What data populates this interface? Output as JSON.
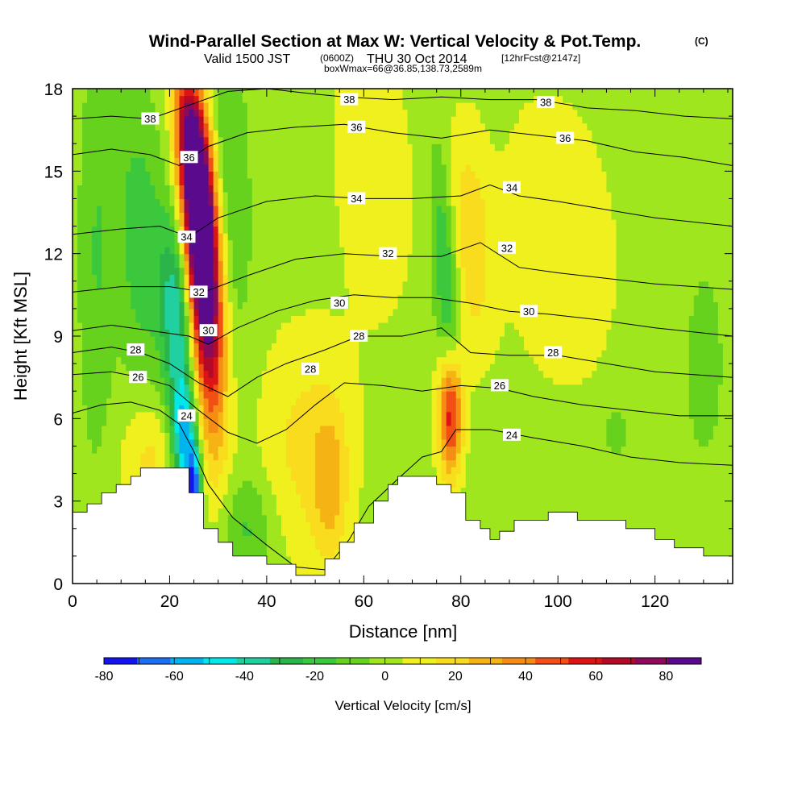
{
  "header": {
    "title": "Wind-Parallel Section at Max W: Vertical Velocity & Pot.Temp.",
    "copyright": "(C)",
    "valid_a": "Valid 1500 JST",
    "valid_b": "(0600Z)",
    "valid_c": "THU 30 Oct 2014",
    "valid_d": "[12hrFcst@2147z]",
    "box_line": "boxWmax=66@36.85,138.73,2589m"
  },
  "chart_data": {
    "type": "heatmap",
    "xlabel": "Distance [nm]",
    "ylabel": "Height [Kft MSL]",
    "xlim": [
      0,
      136
    ],
    "ylim": [
      0,
      18
    ],
    "x_ticks": [
      0,
      20,
      40,
      60,
      80,
      100,
      120
    ],
    "y_ticks": [
      0,
      3,
      6,
      9,
      12,
      15,
      18
    ],
    "colorbar": {
      "title": "Vertical Velocity [cm/s]",
      "ticks": [
        -80,
        -60,
        -40,
        -20,
        0,
        20,
        40,
        60,
        80
      ],
      "levels": [
        -80,
        -70,
        -60,
        -50,
        -40,
        -30,
        -20,
        -10,
        0,
        10,
        20,
        30,
        40,
        50,
        60,
        70,
        80,
        90
      ],
      "colors": [
        "#1414f0",
        "#1e6ef5",
        "#00b4f0",
        "#00e8e8",
        "#20d0a0",
        "#2ab44a",
        "#3cc83c",
        "#66d21e",
        "#a0e61e",
        "#f0f01e",
        "#fadc1e",
        "#f5b414",
        "#f58c14",
        "#f05014",
        "#dc1414",
        "#b40a28",
        "#8c0a5a",
        "#5a0a8c"
      ]
    },
    "background_value": 5,
    "velocity_features": [
      {
        "x": 26,
        "y": 13.6,
        "sx": 2.2,
        "sy": 2.8,
        "value": 95,
        "tilt": -0.3
      },
      {
        "x": 27.5,
        "y": 10.5,
        "sx": 2.5,
        "sy": 4.0,
        "value": 75,
        "tilt": -0.28
      },
      {
        "x": 23.5,
        "y": 16.5,
        "sx": 2.0,
        "sy": 1.8,
        "value": 40,
        "tilt": -0.3
      },
      {
        "x": 78,
        "y": 6.2,
        "sx": 1.8,
        "sy": 1.6,
        "value": 65,
        "tilt": 0
      },
      {
        "x": 82,
        "y": 12.5,
        "sx": 3.0,
        "sy": 2.8,
        "value": 22,
        "tilt": -0.3
      },
      {
        "x": 21.5,
        "y": 9.5,
        "sx": 2.3,
        "sy": 2.5,
        "value": -45,
        "tilt": -0.2
      },
      {
        "x": 23,
        "y": 5.2,
        "sx": 1.8,
        "sy": 1.5,
        "value": -55,
        "tilt": -0.1
      },
      {
        "x": 25,
        "y": 3.2,
        "sx": 1.0,
        "sy": 1.2,
        "value": -75,
        "tilt": 0
      },
      {
        "x": 14,
        "y": 12.5,
        "sx": 3.5,
        "sy": 3.5,
        "value": -22,
        "tilt": -0.2
      },
      {
        "x": 5,
        "y": 12,
        "sx": 2.5,
        "sy": 5.0,
        "value": -15,
        "tilt": 0
      },
      {
        "x": 32,
        "y": 15,
        "sx": 3.0,
        "sy": 4.5,
        "value": -15,
        "tilt": -0.25
      },
      {
        "x": 77,
        "y": 11,
        "sx": 1.8,
        "sy": 3.2,
        "value": -28,
        "tilt": -0.35
      },
      {
        "x": 36,
        "y": 2.0,
        "sx": 4.0,
        "sy": 1.4,
        "value": -18,
        "tilt": 0
      },
      {
        "x": 48,
        "y": 5.0,
        "sx": 7.0,
        "sy": 3.0,
        "value": 18,
        "tilt": 0
      },
      {
        "x": 53,
        "y": 3.5,
        "sx": 2.5,
        "sy": 2.0,
        "value": 22,
        "tilt": 0
      },
      {
        "x": 62,
        "y": 15.0,
        "sx": 6.0,
        "sy": 4.0,
        "value": 12,
        "tilt": -0.3
      },
      {
        "x": 100,
        "y": 12.5,
        "sx": 9.0,
        "sy": 4.0,
        "value": 12,
        "tilt": -0.4
      },
      {
        "x": 16,
        "y": 4.5,
        "sx": 4.0,
        "sy": 1.6,
        "value": 18,
        "tilt": 0
      },
      {
        "x": 112,
        "y": 5.5,
        "sx": 1.5,
        "sy": 0.6,
        "value": -15,
        "tilt": 0
      },
      {
        "x": 130,
        "y": 8.0,
        "sx": 6.0,
        "sy": 5.0,
        "value": -6,
        "tilt": 0
      }
    ],
    "terrain": [
      {
        "x": 0,
        "top": 2.6
      },
      {
        "x": 3,
        "top": 2.9
      },
      {
        "x": 6,
        "top": 3.3
      },
      {
        "x": 9,
        "top": 3.6
      },
      {
        "x": 12,
        "top": 3.9
      },
      {
        "x": 14,
        "top": 4.2
      },
      {
        "x": 24,
        "top": 3.3
      },
      {
        "x": 27,
        "top": 2.0
      },
      {
        "x": 30,
        "top": 1.5
      },
      {
        "x": 33,
        "top": 1.0
      },
      {
        "x": 40,
        "top": 0.7
      },
      {
        "x": 46,
        "top": 0.3
      },
      {
        "x": 52,
        "top": 0.9
      },
      {
        "x": 55,
        "top": 1.5
      },
      {
        "x": 58,
        "top": 2.2
      },
      {
        "x": 62,
        "top": 3.0
      },
      {
        "x": 65,
        "top": 3.6
      },
      {
        "x": 67,
        "top": 3.9
      },
      {
        "x": 75,
        "top": 3.6
      },
      {
        "x": 78,
        "top": 3.3
      },
      {
        "x": 81,
        "top": 2.3
      },
      {
        "x": 84,
        "top": 2.0
      },
      {
        "x": 86,
        "top": 1.6
      },
      {
        "x": 88,
        "top": 1.9
      },
      {
        "x": 91,
        "top": 2.3
      },
      {
        "x": 98,
        "top": 2.6
      },
      {
        "x": 104,
        "top": 2.3
      },
      {
        "x": 114,
        "top": 2.0
      },
      {
        "x": 120,
        "top": 1.6
      },
      {
        "x": 124,
        "top": 1.3
      },
      {
        "x": 130,
        "top": 1.0
      },
      {
        "x": 136,
        "top": 1.0
      }
    ],
    "theta_contours": [
      {
        "label": "24",
        "points": [
          [
            0,
            6.2
          ],
          [
            6,
            6.5
          ],
          [
            12,
            6.6
          ],
          [
            18,
            6.3
          ],
          [
            22,
            5.8
          ],
          [
            25,
            4.8
          ],
          [
            28,
            3.6
          ],
          [
            33,
            2.4
          ],
          [
            40,
            1.4
          ],
          [
            46,
            0.6
          ],
          [
            52,
            0.5
          ],
          [
            57,
            1.6
          ],
          [
            61,
            2.8
          ],
          [
            67,
            3.8
          ],
          [
            72,
            4.6
          ],
          [
            76,
            4.8
          ],
          [
            79,
            5.6
          ],
          [
            86,
            5.6
          ],
          [
            95,
            5.3
          ],
          [
            105,
            5.0
          ],
          [
            115,
            4.6
          ],
          [
            125,
            4.4
          ],
          [
            136,
            4.3
          ]
        ],
        "label_at": [
          [
            23.5,
            6.1
          ],
          [
            90.5,
            5.4
          ]
        ]
      },
      {
        "label": "26",
        "points": [
          [
            0,
            7.6
          ],
          [
            8,
            7.7
          ],
          [
            14,
            7.5
          ],
          [
            20,
            7.2
          ],
          [
            26,
            6.3
          ],
          [
            32,
            5.5
          ],
          [
            38,
            5.1
          ],
          [
            44,
            5.6
          ],
          [
            50,
            6.5
          ],
          [
            56,
            7.3
          ],
          [
            64,
            7.2
          ],
          [
            72,
            7.0
          ],
          [
            80,
            7.2
          ],
          [
            88,
            7.1
          ],
          [
            95,
            6.8
          ],
          [
            105,
            6.5
          ],
          [
            115,
            6.3
          ],
          [
            125,
            6.1
          ],
          [
            136,
            6.1
          ]
        ],
        "label_at": [
          [
            13.5,
            7.5
          ],
          [
            88,
            7.2
          ]
        ]
      },
      {
        "label": "28",
        "points": [
          [
            0,
            8.4
          ],
          [
            8,
            8.6
          ],
          [
            14,
            8.4
          ],
          [
            20,
            8.0
          ],
          [
            26,
            7.3
          ],
          [
            32,
            6.8
          ],
          [
            38,
            7.5
          ],
          [
            44,
            8.0
          ],
          [
            52,
            8.5
          ],
          [
            59,
            9.0
          ],
          [
            68,
            9.0
          ],
          [
            76,
            9.3
          ],
          [
            82,
            8.4
          ],
          [
            90,
            8.3
          ],
          [
            100,
            8.3
          ],
          [
            110,
            8.0
          ],
          [
            120,
            7.7
          ],
          [
            136,
            7.5
          ]
        ],
        "label_at": [
          [
            13,
            8.5
          ],
          [
            49,
            7.8
          ],
          [
            59,
            9.0
          ],
          [
            99,
            8.4
          ]
        ]
      },
      {
        "label": "30",
        "points": [
          [
            0,
            9.2
          ],
          [
            8,
            9.4
          ],
          [
            16,
            9.2
          ],
          [
            24,
            9.0
          ],
          [
            28,
            8.7
          ],
          [
            34,
            9.3
          ],
          [
            42,
            9.9
          ],
          [
            50,
            10.3
          ],
          [
            58,
            10.5
          ],
          [
            66,
            10.4
          ],
          [
            74,
            10.4
          ],
          [
            82,
            10.2
          ],
          [
            90,
            9.9
          ],
          [
            98,
            9.8
          ],
          [
            108,
            9.6
          ],
          [
            120,
            9.3
          ],
          [
            136,
            9.0
          ]
        ],
        "label_at": [
          [
            28,
            9.2
          ],
          [
            55,
            10.2
          ],
          [
            94,
            9.9
          ]
        ]
      },
      {
        "label": "32",
        "points": [
          [
            0,
            10.6
          ],
          [
            10,
            10.8
          ],
          [
            20,
            10.8
          ],
          [
            27,
            10.6
          ],
          [
            36,
            11.2
          ],
          [
            46,
            11.8
          ],
          [
            56,
            12.0
          ],
          [
            66,
            11.9
          ],
          [
            76,
            11.9
          ],
          [
            84,
            12.4
          ],
          [
            92,
            11.5
          ],
          [
            100,
            11.3
          ],
          [
            110,
            11.1
          ],
          [
            120,
            10.9
          ],
          [
            136,
            10.7
          ]
        ],
        "label_at": [
          [
            26,
            10.6
          ],
          [
            65,
            12.0
          ],
          [
            89.5,
            12.2
          ]
        ]
      },
      {
        "label": "34",
        "points": [
          [
            0,
            12.7
          ],
          [
            10,
            12.9
          ],
          [
            18,
            13.0
          ],
          [
            24,
            12.6
          ],
          [
            30,
            13.3
          ],
          [
            40,
            13.9
          ],
          [
            50,
            14.1
          ],
          [
            60,
            14.0
          ],
          [
            70,
            14.0
          ],
          [
            80,
            14.1
          ],
          [
            86,
            14.5
          ],
          [
            92,
            14.1
          ],
          [
            100,
            13.9
          ],
          [
            110,
            13.6
          ],
          [
            120,
            13.3
          ],
          [
            136,
            13.0
          ]
        ],
        "label_at": [
          [
            23.5,
            12.6
          ],
          [
            58.5,
            14.0
          ],
          [
            90.5,
            14.4
          ]
        ]
      },
      {
        "label": "36",
        "points": [
          [
            0,
            15.6
          ],
          [
            8,
            15.8
          ],
          [
            16,
            15.6
          ],
          [
            22,
            15.2
          ],
          [
            28,
            15.9
          ],
          [
            36,
            16.4
          ],
          [
            46,
            16.6
          ],
          [
            56,
            16.7
          ],
          [
            66,
            16.4
          ],
          [
            76,
            16.2
          ],
          [
            86,
            16.5
          ],
          [
            96,
            16.3
          ],
          [
            106,
            16.1
          ],
          [
            116,
            15.7
          ],
          [
            126,
            15.5
          ],
          [
            136,
            15.2
          ]
        ],
        "label_at": [
          [
            24,
            15.5
          ],
          [
            58.5,
            16.6
          ],
          [
            101.5,
            16.2
          ]
        ]
      },
      {
        "label": "38",
        "points": [
          [
            0,
            16.9
          ],
          [
            8,
            17.0
          ],
          [
            16,
            16.9
          ],
          [
            24,
            17.4
          ],
          [
            32,
            17.9
          ],
          [
            40,
            18.0
          ],
          [
            50,
            17.8
          ],
          [
            56,
            17.7
          ],
          [
            66,
            17.6
          ],
          [
            76,
            17.7
          ],
          [
            86,
            17.6
          ],
          [
            96,
            17.6
          ],
          [
            106,
            17.3
          ],
          [
            116,
            17.2
          ],
          [
            126,
            17.0
          ],
          [
            136,
            16.9
          ]
        ],
        "label_at": [
          [
            16,
            16.9
          ],
          [
            57,
            17.6
          ],
          [
            97.5,
            17.5
          ]
        ]
      }
    ]
  }
}
